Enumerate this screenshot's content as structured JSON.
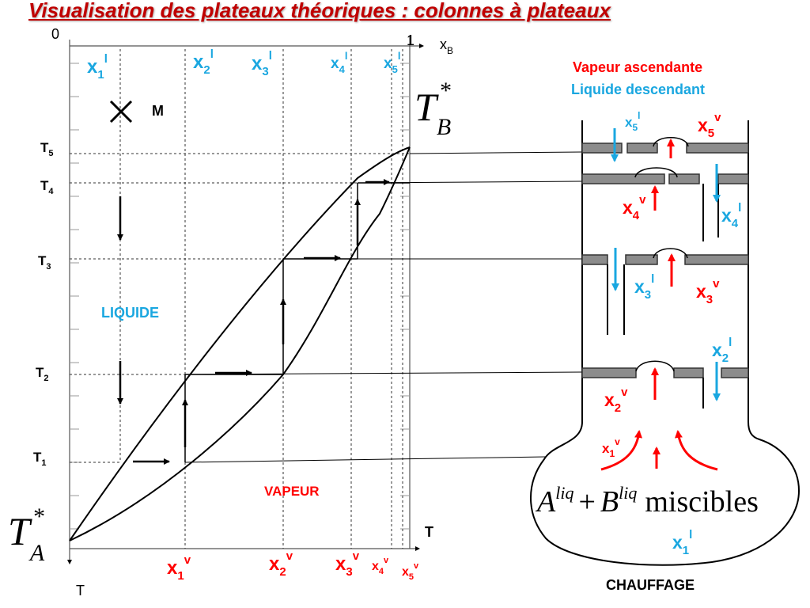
{
  "title": "Visualisation des plateaux théoriques : colonnes à plateaux",
  "colors": {
    "title": "#c00000",
    "vapor": "#ff0000",
    "liquid": "#1aa7e0",
    "plate": "#8c8c8c",
    "black": "#000000"
  },
  "diagram": {
    "axis": {
      "origin_label": "0",
      "end_label": "1",
      "x_symbol": "x",
      "x_sub": "B",
      "t_label": "T",
      "t_label_bottom": "T"
    },
    "top_labels": [
      {
        "base": "x",
        "sub": "1",
        "sup": "l"
      },
      {
        "base": "x",
        "sub": "2",
        "sup": "l"
      },
      {
        "base": "x",
        "sub": "3",
        "sup": "l"
      },
      {
        "base": "x",
        "sub": "4",
        "sup": "l"
      },
      {
        "base": "x",
        "sub": "5",
        "sup": "l"
      }
    ],
    "bottom_labels": [
      {
        "base": "x",
        "sub": "1",
        "sup": "v"
      },
      {
        "base": "x",
        "sub": "2",
        "sup": "v"
      },
      {
        "base": "x",
        "sub": "3",
        "sup": "v"
      },
      {
        "base": "x",
        "sub": "4",
        "sup": "v"
      },
      {
        "base": "x",
        "sub": "5",
        "sup": "v"
      }
    ],
    "temps": [
      {
        "base": "T",
        "sub": "5"
      },
      {
        "base": "T",
        "sub": "4"
      },
      {
        "base": "T",
        "sub": "3"
      },
      {
        "base": "T",
        "sub": "2"
      },
      {
        "base": "T",
        "sub": "1"
      }
    ],
    "ta": {
      "base": "T",
      "sub": "A",
      "sup": "*"
    },
    "tb": {
      "base": "T",
      "sub": "B",
      "sup": "*"
    },
    "point_m": "M",
    "liquid_label": "LIQUIDE",
    "vapor_label": "VAPEUR"
  },
  "column": {
    "legend_vapor": "Vapeur ascendante",
    "legend_liquid": "Liquide descendant",
    "plate_labels": {
      "x5l": {
        "base": "x",
        "sub": "5",
        "sup": "l"
      },
      "x5v": {
        "base": "x",
        "sub": "5",
        "sup": "v"
      },
      "x4v": {
        "base": "x",
        "sub": "4",
        "sup": "v"
      },
      "x4l": {
        "base": "x",
        "sub": "4",
        "sup": "l"
      },
      "x3l": {
        "base": "x",
        "sub": "3",
        "sup": "l"
      },
      "x3v": {
        "base": "x",
        "sub": "3",
        "sup": "v"
      },
      "x2l": {
        "base": "x",
        "sub": "2",
        "sup": "l"
      },
      "x2v": {
        "base": "x",
        "sub": "2",
        "sup": "v"
      },
      "x1v": {
        "base": "x",
        "sub": "1",
        "sup": "v"
      },
      "x1l": {
        "base": "x",
        "sub": "1",
        "sup": "l"
      }
    },
    "formula": {
      "a": "A",
      "a_sup": "liq",
      "plus": "+",
      "b": "B",
      "b_sup": "liq",
      "word": "miscibles"
    },
    "heating": "CHAUFFAGE"
  }
}
